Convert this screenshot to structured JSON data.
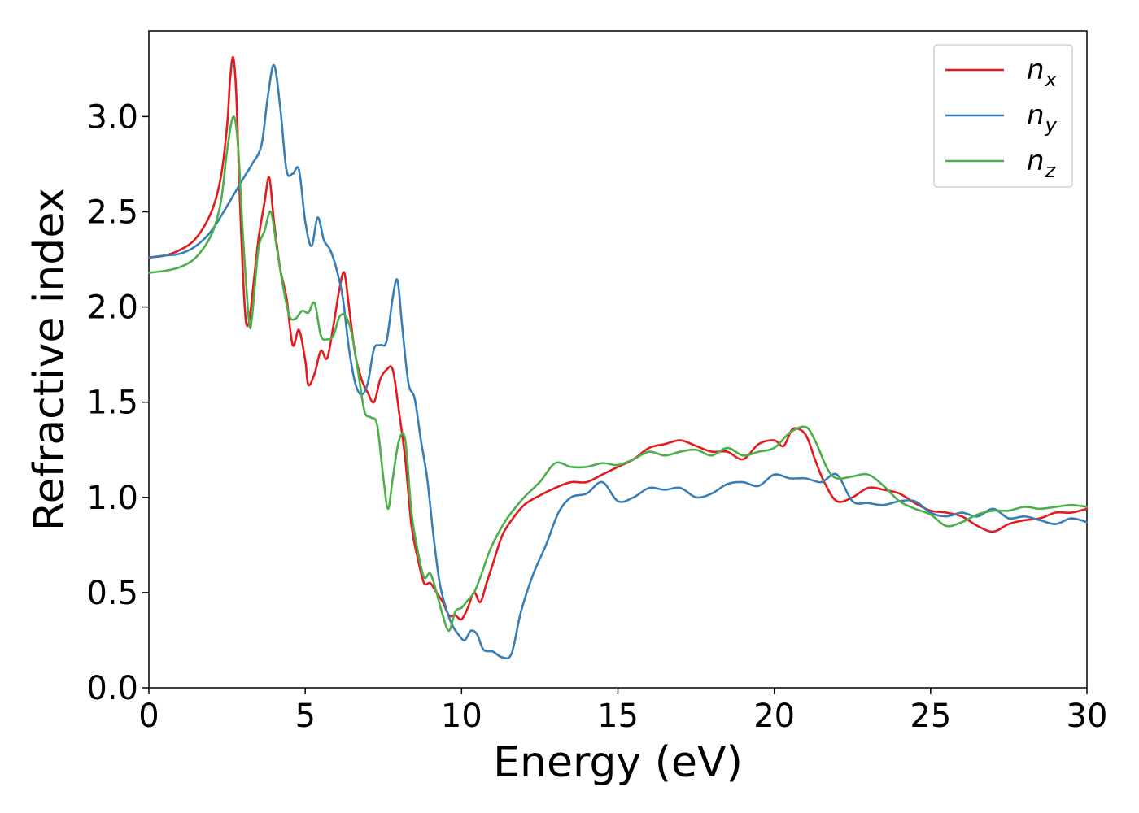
{
  "chart_data": {
    "type": "line",
    "title": "",
    "xlabel": "Energy (eV)",
    "ylabel": "Refractive index",
    "xlim": [
      0,
      30
    ],
    "ylim": [
      0,
      3.45
    ],
    "xticks": [
      0,
      5,
      10,
      15,
      20,
      25,
      30
    ],
    "xtick_labels": [
      "0",
      "5",
      "10",
      "15",
      "20",
      "25",
      "30"
    ],
    "yticks": [
      0,
      0.5,
      1,
      1.5,
      2,
      2.5,
      3
    ],
    "ytick_labels": [
      "0.0",
      "0.5",
      "1.0",
      "1.5",
      "2.0",
      "2.5",
      "3.0"
    ],
    "grid": false,
    "legend_position": "top-right",
    "series": [
      {
        "name": "n_x",
        "label_main": "n",
        "label_sub": "x",
        "color": "#e41a1c",
        "points": [
          [
            0,
            2.26
          ],
          [
            0.5,
            2.27
          ],
          [
            1,
            2.3
          ],
          [
            1.5,
            2.36
          ],
          [
            2,
            2.5
          ],
          [
            2.3,
            2.68
          ],
          [
            2.5,
            2.95
          ],
          [
            2.6,
            3.2
          ],
          [
            2.7,
            3.31
          ],
          [
            2.8,
            3.1
          ],
          [
            2.9,
            2.6
          ],
          [
            3.0,
            2.2
          ],
          [
            3.1,
            1.93
          ],
          [
            3.2,
            1.92
          ],
          [
            3.3,
            2.05
          ],
          [
            3.5,
            2.35
          ],
          [
            3.7,
            2.55
          ],
          [
            3.85,
            2.68
          ],
          [
            4.0,
            2.45
          ],
          [
            4.2,
            2.2
          ],
          [
            4.4,
            2.05
          ],
          [
            4.6,
            1.8
          ],
          [
            4.8,
            1.88
          ],
          [
            5.0,
            1.72
          ],
          [
            5.1,
            1.59
          ],
          [
            5.3,
            1.65
          ],
          [
            5.5,
            1.77
          ],
          [
            5.7,
            1.73
          ],
          [
            5.9,
            1.9
          ],
          [
            6.1,
            2.1
          ],
          [
            6.25,
            2.18
          ],
          [
            6.4,
            2.0
          ],
          [
            6.6,
            1.75
          ],
          [
            6.8,
            1.62
          ],
          [
            7.0,
            1.55
          ],
          [
            7.2,
            1.5
          ],
          [
            7.4,
            1.62
          ],
          [
            7.6,
            1.67
          ],
          [
            7.8,
            1.67
          ],
          [
            8.0,
            1.45
          ],
          [
            8.2,
            1.2
          ],
          [
            8.4,
            0.85
          ],
          [
            8.6,
            0.68
          ],
          [
            8.8,
            0.55
          ],
          [
            9.0,
            0.55
          ],
          [
            9.2,
            0.5
          ],
          [
            9.4,
            0.45
          ],
          [
            9.6,
            0.38
          ],
          [
            9.8,
            0.38
          ],
          [
            10.0,
            0.36
          ],
          [
            10.2,
            0.42
          ],
          [
            10.4,
            0.5
          ],
          [
            10.6,
            0.45
          ],
          [
            10.8,
            0.55
          ],
          [
            11.0,
            0.65
          ],
          [
            11.3,
            0.8
          ],
          [
            11.6,
            0.88
          ],
          [
            12.0,
            0.96
          ],
          [
            12.5,
            1.01
          ],
          [
            13.0,
            1.05
          ],
          [
            13.5,
            1.08
          ],
          [
            14.0,
            1.08
          ],
          [
            14.5,
            1.12
          ],
          [
            15.0,
            1.16
          ],
          [
            15.5,
            1.2
          ],
          [
            16.0,
            1.26
          ],
          [
            16.5,
            1.28
          ],
          [
            17.0,
            1.3
          ],
          [
            17.5,
            1.27
          ],
          [
            18.0,
            1.24
          ],
          [
            18.5,
            1.24
          ],
          [
            19.0,
            1.2
          ],
          [
            19.5,
            1.28
          ],
          [
            20.0,
            1.3
          ],
          [
            20.3,
            1.27
          ],
          [
            20.6,
            1.36
          ],
          [
            21.0,
            1.33
          ],
          [
            21.3,
            1.2
          ],
          [
            21.6,
            1.08
          ],
          [
            22.0,
            0.98
          ],
          [
            22.5,
            1.0
          ],
          [
            23.0,
            1.05
          ],
          [
            23.5,
            1.04
          ],
          [
            24.0,
            1.02
          ],
          [
            24.5,
            0.97
          ],
          [
            25.0,
            0.93
          ],
          [
            25.5,
            0.92
          ],
          [
            26.0,
            0.9
          ],
          [
            26.5,
            0.85
          ],
          [
            27.0,
            0.82
          ],
          [
            27.5,
            0.86
          ],
          [
            28.0,
            0.88
          ],
          [
            28.5,
            0.89
          ],
          [
            29.0,
            0.92
          ],
          [
            29.5,
            0.92
          ],
          [
            30.0,
            0.94
          ]
        ]
      },
      {
        "name": "n_y",
        "label_main": "n",
        "label_sub": "y",
        "color": "#377eb8",
        "points": [
          [
            0,
            2.26
          ],
          [
            0.5,
            2.27
          ],
          [
            1,
            2.28
          ],
          [
            1.5,
            2.32
          ],
          [
            2,
            2.4
          ],
          [
            2.5,
            2.53
          ],
          [
            3.0,
            2.67
          ],
          [
            3.3,
            2.75
          ],
          [
            3.6,
            2.85
          ],
          [
            3.8,
            3.1
          ],
          [
            4.0,
            3.27
          ],
          [
            4.2,
            3.05
          ],
          [
            4.4,
            2.72
          ],
          [
            4.6,
            2.7
          ],
          [
            4.8,
            2.72
          ],
          [
            5.0,
            2.45
          ],
          [
            5.2,
            2.32
          ],
          [
            5.4,
            2.47
          ],
          [
            5.6,
            2.35
          ],
          [
            5.8,
            2.3
          ],
          [
            6.0,
            2.2
          ],
          [
            6.2,
            2.05
          ],
          [
            6.4,
            1.78
          ],
          [
            6.6,
            1.6
          ],
          [
            6.8,
            1.54
          ],
          [
            7.0,
            1.6
          ],
          [
            7.2,
            1.78
          ],
          [
            7.4,
            1.8
          ],
          [
            7.6,
            1.82
          ],
          [
            7.8,
            2.05
          ],
          [
            7.95,
            2.14
          ],
          [
            8.1,
            1.9
          ],
          [
            8.3,
            1.6
          ],
          [
            8.5,
            1.52
          ],
          [
            8.7,
            1.3
          ],
          [
            8.9,
            1.1
          ],
          [
            9.1,
            0.8
          ],
          [
            9.3,
            0.55
          ],
          [
            9.5,
            0.42
          ],
          [
            9.7,
            0.33
          ],
          [
            9.9,
            0.28
          ],
          [
            10.1,
            0.25
          ],
          [
            10.3,
            0.3
          ],
          [
            10.5,
            0.28
          ],
          [
            10.7,
            0.2
          ],
          [
            11.0,
            0.19
          ],
          [
            11.3,
            0.16
          ],
          [
            11.6,
            0.18
          ],
          [
            11.9,
            0.4
          ],
          [
            12.3,
            0.6
          ],
          [
            12.7,
            0.75
          ],
          [
            13.1,
            0.92
          ],
          [
            13.5,
            1.0
          ],
          [
            14.0,
            1.02
          ],
          [
            14.5,
            1.08
          ],
          [
            15.0,
            0.98
          ],
          [
            15.5,
            1.0
          ],
          [
            16.0,
            1.05
          ],
          [
            16.5,
            1.04
          ],
          [
            17.0,
            1.05
          ],
          [
            17.5,
            1.0
          ],
          [
            18.0,
            1.02
          ],
          [
            18.5,
            1.07
          ],
          [
            19.0,
            1.08
          ],
          [
            19.5,
            1.06
          ],
          [
            20.0,
            1.12
          ],
          [
            20.5,
            1.1
          ],
          [
            21.0,
            1.1
          ],
          [
            21.5,
            1.08
          ],
          [
            22.0,
            1.12
          ],
          [
            22.5,
            0.98
          ],
          [
            23.0,
            0.97
          ],
          [
            23.5,
            0.96
          ],
          [
            24.0,
            0.98
          ],
          [
            24.5,
            0.98
          ],
          [
            25.0,
            0.92
          ],
          [
            25.5,
            0.9
          ],
          [
            26.0,
            0.92
          ],
          [
            26.5,
            0.9
          ],
          [
            27.0,
            0.94
          ],
          [
            27.5,
            0.89
          ],
          [
            28.0,
            0.9
          ],
          [
            28.5,
            0.88
          ],
          [
            29.0,
            0.86
          ],
          [
            29.5,
            0.89
          ],
          [
            30.0,
            0.87
          ]
        ]
      },
      {
        "name": "n_z",
        "label_main": "n",
        "label_sub": "z",
        "color": "#4daf4a",
        "points": [
          [
            0,
            2.18
          ],
          [
            0.5,
            2.19
          ],
          [
            1,
            2.21
          ],
          [
            1.5,
            2.26
          ],
          [
            2,
            2.38
          ],
          [
            2.3,
            2.55
          ],
          [
            2.5,
            2.82
          ],
          [
            2.7,
            3.0
          ],
          [
            2.85,
            2.85
          ],
          [
            3.0,
            2.4
          ],
          [
            3.2,
            1.93
          ],
          [
            3.3,
            1.95
          ],
          [
            3.5,
            2.3
          ],
          [
            3.7,
            2.4
          ],
          [
            3.9,
            2.5
          ],
          [
            4.1,
            2.3
          ],
          [
            4.3,
            2.1
          ],
          [
            4.5,
            1.95
          ],
          [
            4.7,
            1.94
          ],
          [
            4.9,
            1.98
          ],
          [
            5.1,
            1.97
          ],
          [
            5.3,
            2.02
          ],
          [
            5.5,
            1.85
          ],
          [
            5.7,
            1.83
          ],
          [
            5.9,
            1.85
          ],
          [
            6.1,
            1.95
          ],
          [
            6.3,
            1.95
          ],
          [
            6.5,
            1.85
          ],
          [
            6.7,
            1.65
          ],
          [
            6.9,
            1.45
          ],
          [
            7.1,
            1.42
          ],
          [
            7.3,
            1.38
          ],
          [
            7.5,
            1.1
          ],
          [
            7.65,
            0.94
          ],
          [
            7.8,
            1.1
          ],
          [
            8.0,
            1.3
          ],
          [
            8.2,
            1.3
          ],
          [
            8.4,
            0.92
          ],
          [
            8.6,
            0.72
          ],
          [
            8.8,
            0.58
          ],
          [
            9.0,
            0.6
          ],
          [
            9.2,
            0.5
          ],
          [
            9.4,
            0.38
          ],
          [
            9.6,
            0.3
          ],
          [
            9.8,
            0.4
          ],
          [
            10.0,
            0.42
          ],
          [
            10.2,
            0.46
          ],
          [
            10.4,
            0.5
          ],
          [
            10.6,
            0.58
          ],
          [
            10.9,
            0.72
          ],
          [
            11.2,
            0.82
          ],
          [
            11.5,
            0.9
          ],
          [
            12.0,
            1.0
          ],
          [
            12.5,
            1.08
          ],
          [
            13.0,
            1.18
          ],
          [
            13.5,
            1.16
          ],
          [
            14.0,
            1.16
          ],
          [
            14.5,
            1.18
          ],
          [
            15.0,
            1.17
          ],
          [
            15.5,
            1.2
          ],
          [
            16.0,
            1.24
          ],
          [
            16.5,
            1.22
          ],
          [
            17.0,
            1.24
          ],
          [
            17.5,
            1.25
          ],
          [
            18.0,
            1.22
          ],
          [
            18.5,
            1.26
          ],
          [
            19.0,
            1.22
          ],
          [
            19.5,
            1.24
          ],
          [
            20.0,
            1.26
          ],
          [
            20.5,
            1.34
          ],
          [
            21.0,
            1.37
          ],
          [
            21.3,
            1.3
          ],
          [
            21.7,
            1.15
          ],
          [
            22.0,
            1.1
          ],
          [
            22.5,
            1.11
          ],
          [
            23.0,
            1.12
          ],
          [
            23.5,
            1.06
          ],
          [
            24.0,
            0.98
          ],
          [
            24.5,
            0.94
          ],
          [
            25.0,
            0.91
          ],
          [
            25.5,
            0.85
          ],
          [
            26.0,
            0.87
          ],
          [
            26.5,
            0.91
          ],
          [
            27.0,
            0.93
          ],
          [
            27.5,
            0.93
          ],
          [
            28.0,
            0.95
          ],
          [
            28.5,
            0.94
          ],
          [
            29.0,
            0.95
          ],
          [
            29.5,
            0.96
          ],
          [
            30.0,
            0.95
          ]
        ]
      }
    ]
  }
}
